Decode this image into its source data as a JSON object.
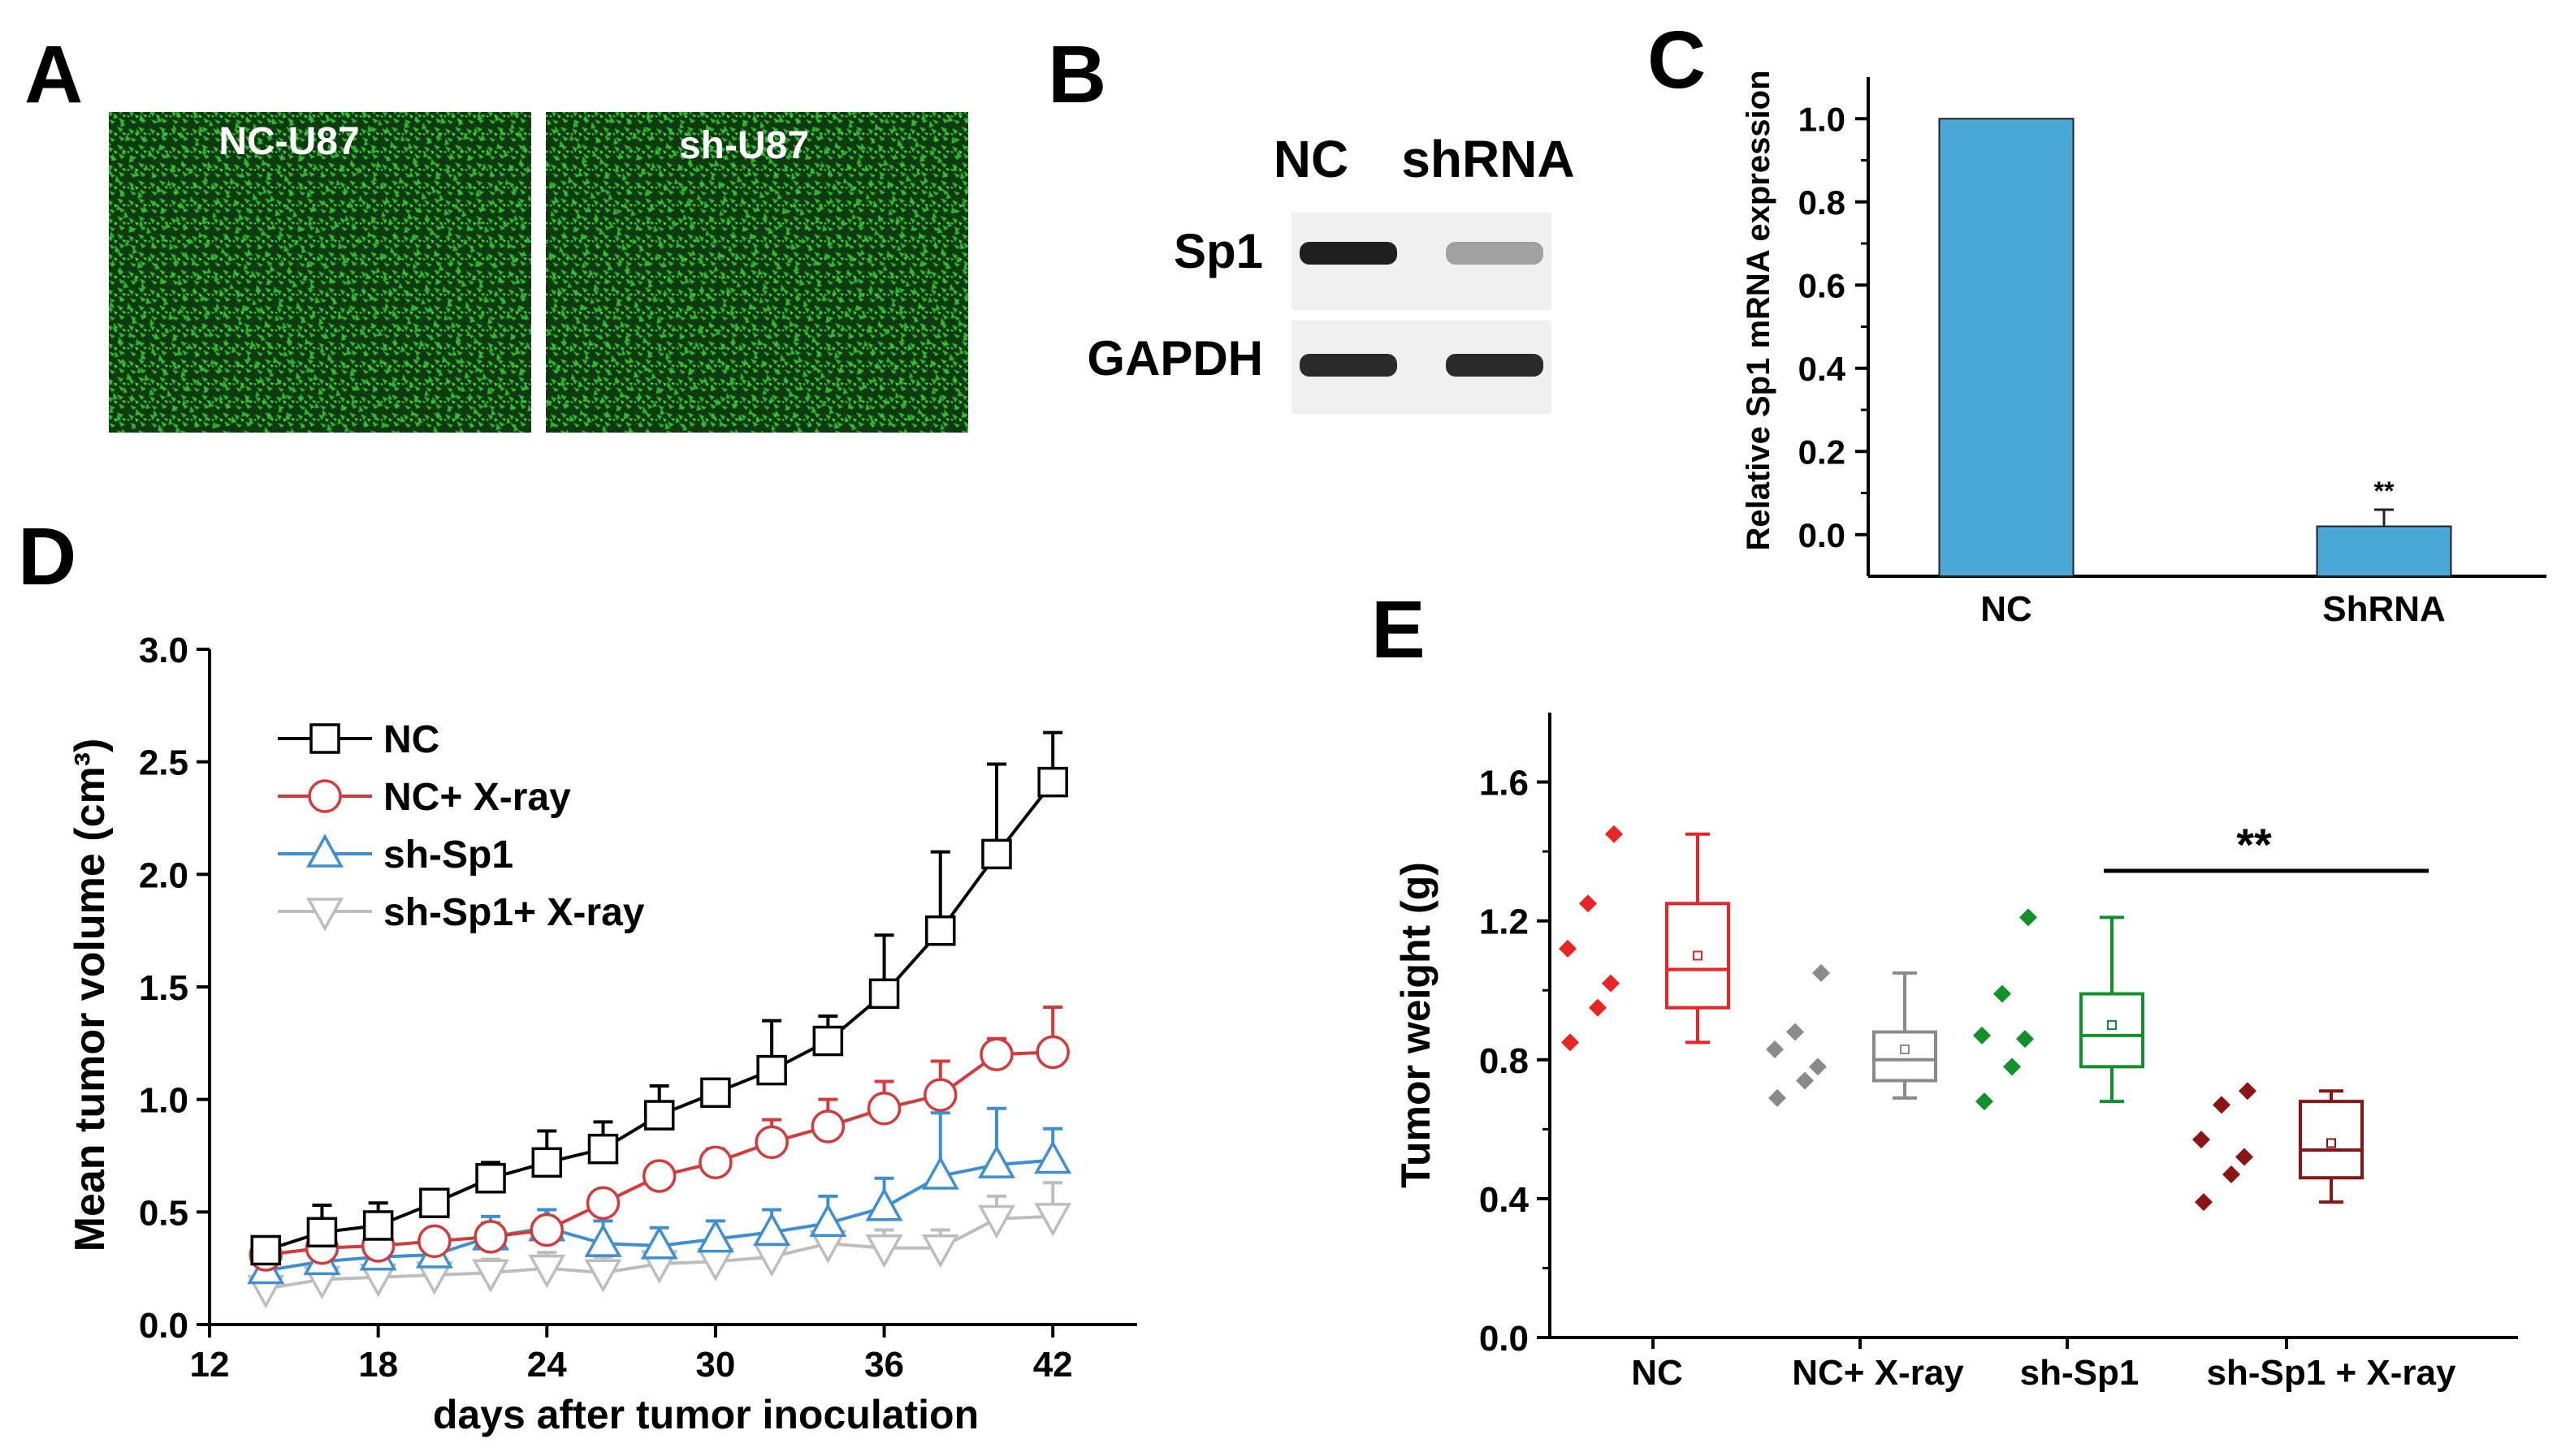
{
  "panels": {
    "A": {
      "letter": "A",
      "images": [
        {
          "label": "NC-U87",
          "color": "#1b9e20"
        },
        {
          "label": "sh-U87",
          "color": "#1b9e20"
        }
      ]
    },
    "B": {
      "letter": "B",
      "lanes": [
        "NC",
        "shRNA"
      ],
      "rows": [
        {
          "label": "Sp1",
          "intensity": [
            0.95,
            0.35
          ]
        },
        {
          "label": "GAPDH",
          "intensity": [
            0.9,
            0.9
          ]
        }
      ]
    },
    "C": {
      "letter": "C"
    },
    "D": {
      "letter": "D"
    },
    "E": {
      "letter": "E"
    }
  },
  "chart_data": [
    {
      "id": "C",
      "type": "bar",
      "categories": [
        "NC",
        "ShRNA"
      ],
      "values": [
        1.0,
        0.02
      ],
      "errors": [
        0,
        0.04
      ],
      "significance": [
        "",
        "**"
      ],
      "ylabel": "Relative Sp1 mRNA  expression",
      "ylim": [
        -0.1,
        1.1
      ],
      "yticks": [
        "0.0",
        "0.2",
        "0.4",
        "0.6",
        "0.8",
        "1.0"
      ],
      "bar_color": "#4ba8d6"
    },
    {
      "id": "D",
      "type": "line",
      "xlabel": "days after tumor inoculation",
      "ylabel": "Mean tumor volume (cm³)",
      "xlim": [
        12,
        45
      ],
      "ylim": [
        0,
        3.0
      ],
      "xticks": [
        "12",
        "18",
        "24",
        "30",
        "36",
        "42"
      ],
      "yticks": [
        "0.0",
        "0.5",
        "1.0",
        "1.5",
        "2.0",
        "2.5",
        "3.0"
      ],
      "legend_position": "top-left",
      "x": [
        14,
        16,
        18,
        20,
        22,
        24,
        26,
        28,
        30,
        32,
        34,
        36,
        38,
        40,
        42
      ],
      "series": [
        {
          "name": "NC",
          "marker": "square",
          "color": "#000000",
          "values": [
            0.33,
            0.41,
            0.44,
            0.54,
            0.65,
            0.72,
            0.78,
            0.93,
            1.03,
            1.13,
            1.26,
            1.47,
            1.75,
            2.09,
            2.41
          ],
          "errors": [
            0.04,
            0.12,
            0.1,
            0.05,
            0.07,
            0.14,
            0.12,
            0.13,
            0.06,
            0.22,
            0.11,
            0.26,
            0.35,
            0.4,
            0.22
          ]
        },
        {
          "name": "NC+ X-ray",
          "marker": "circle",
          "color": "#d43a3a",
          "values": [
            0.31,
            0.34,
            0.35,
            0.37,
            0.39,
            0.42,
            0.54,
            0.66,
            0.72,
            0.81,
            0.88,
            0.96,
            1.02,
            1.2,
            1.21
          ],
          "errors": [
            0.04,
            0.06,
            0.05,
            0.05,
            0.06,
            0.05,
            0.05,
            0.05,
            0.06,
            0.1,
            0.12,
            0.12,
            0.15,
            0.07,
            0.2
          ]
        },
        {
          "name": "sh-Sp1",
          "marker": "triangle-up",
          "color": "#3d8fd1",
          "values": [
            0.24,
            0.28,
            0.3,
            0.31,
            0.39,
            0.43,
            0.36,
            0.35,
            0.38,
            0.41,
            0.45,
            0.52,
            0.66,
            0.71,
            0.73
          ],
          "errors": [
            0.05,
            0.06,
            0.08,
            0.06,
            0.09,
            0.08,
            0.1,
            0.08,
            0.08,
            0.1,
            0.12,
            0.13,
            0.28,
            0.25,
            0.14
          ]
        },
        {
          "name": "sh-Sp1+ X-ray",
          "marker": "triangle-down",
          "color": "#bdbdbd",
          "values": [
            0.16,
            0.2,
            0.21,
            0.22,
            0.23,
            0.25,
            0.23,
            0.27,
            0.28,
            0.3,
            0.36,
            0.34,
            0.34,
            0.47,
            0.48
          ],
          "errors": [
            0.05,
            0.06,
            0.06,
            0.06,
            0.06,
            0.07,
            0.07,
            0.07,
            0.07,
            0.1,
            0.1,
            0.08,
            0.08,
            0.1,
            0.15
          ]
        }
      ]
    },
    {
      "id": "E",
      "type": "box",
      "ylabel": "Tumor weight (g)",
      "ylim": [
        0,
        1.8
      ],
      "yticks": [
        "0.0",
        "0.4",
        "0.8",
        "1.2",
        "1.6"
      ],
      "categories": [
        "NC",
        "NC+  X-ray",
        "sh-Sp1",
        "sh-Sp1 + X-ray"
      ],
      "groups": [
        {
          "name": "NC",
          "color": "#e82424",
          "points": [
            1.45,
            1.25,
            1.12,
            1.02,
            0.95,
            0.85
          ],
          "box": {
            "min": 0.85,
            "q1": 0.95,
            "median": 1.06,
            "q3": 1.25,
            "max": 1.45,
            "mean": 1.1
          }
        },
        {
          "name": "NC+  X-ray",
          "color": "#8a8a8a",
          "points": [
            1.05,
            0.88,
            0.83,
            0.78,
            0.74,
            0.69
          ],
          "box": {
            "min": 0.69,
            "q1": 0.74,
            "median": 0.8,
            "q3": 0.88,
            "max": 1.05,
            "mean": 0.83
          }
        },
        {
          "name": "sh-Sp1",
          "color": "#12912a",
          "points": [
            1.21,
            0.99,
            0.87,
            0.86,
            0.78,
            0.68
          ],
          "box": {
            "min": 0.68,
            "q1": 0.78,
            "median": 0.87,
            "q3": 0.99,
            "max": 1.21,
            "mean": 0.9
          }
        },
        {
          "name": "sh-Sp1 + X-ray",
          "color": "#8b1414",
          "points": [
            0.71,
            0.67,
            0.57,
            0.52,
            0.47,
            0.39
          ],
          "box": {
            "min": 0.39,
            "q1": 0.46,
            "median": 0.54,
            "q3": 0.68,
            "max": 0.71,
            "mean": 0.56
          }
        }
      ],
      "significance": {
        "label": "**",
        "from": "sh-Sp1",
        "to": "sh-Sp1 + X-ray"
      }
    }
  ]
}
